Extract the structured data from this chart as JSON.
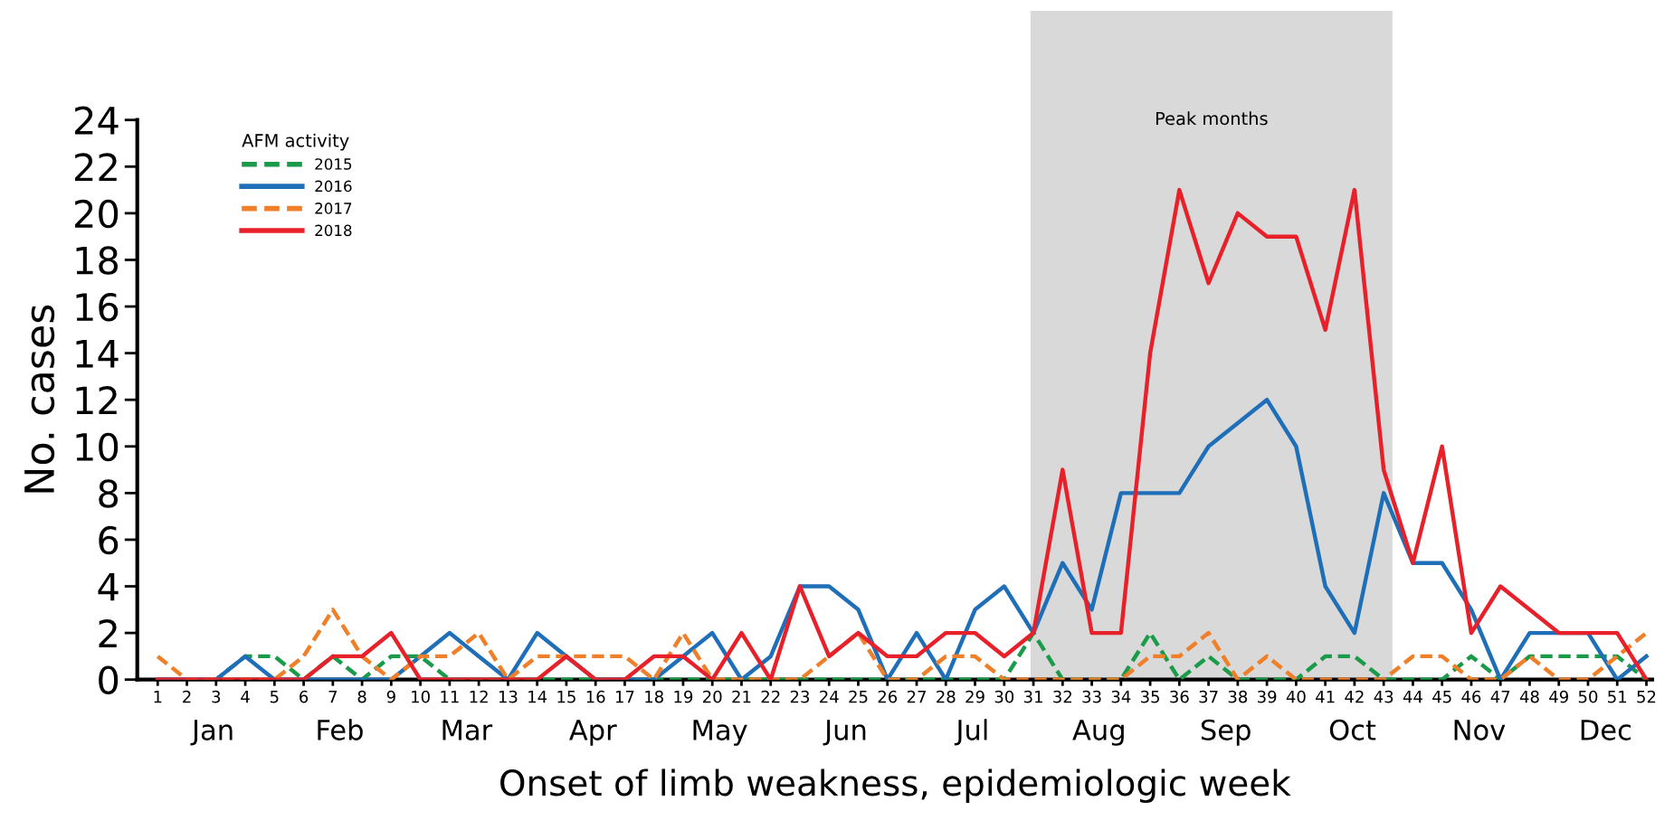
{
  "chart_data": {
    "type": "line",
    "xlabel": "Onset of limb weakness, epidemiologic week",
    "ylabel": "No. cases",
    "legend_title": "AFM activity",
    "x": [
      1,
      2,
      3,
      4,
      5,
      6,
      7,
      8,
      9,
      10,
      11,
      12,
      13,
      14,
      15,
      16,
      17,
      18,
      19,
      20,
      21,
      22,
      23,
      24,
      25,
      26,
      27,
      28,
      29,
      30,
      31,
      32,
      33,
      34,
      35,
      36,
      37,
      38,
      39,
      40,
      41,
      42,
      43,
      44,
      45,
      46,
      47,
      48,
      49,
      50,
      51,
      52
    ],
    "series": [
      {
        "name": "2015",
        "color": "#1a9b4a",
        "line_style": "dashed",
        "values": [
          0,
          0,
          0,
          1,
          1,
          0,
          1,
          0,
          1,
          1,
          0,
          0,
          0,
          0,
          0,
          0,
          0,
          0,
          0,
          0,
          0,
          0,
          0,
          0,
          0,
          0,
          0,
          0,
          0,
          0,
          2,
          0,
          0,
          0,
          2,
          0,
          1,
          0,
          0,
          0,
          1,
          1,
          0,
          0,
          0,
          1,
          0,
          1,
          1,
          1,
          1,
          0
        ]
      },
      {
        "name": "2016",
        "color": "#1f6fb8",
        "line_style": "solid",
        "values": [
          0,
          0,
          0,
          1,
          0,
          0,
          0,
          0,
          0,
          1,
          2,
          1,
          0,
          2,
          1,
          0,
          0,
          0,
          1,
          2,
          0,
          1,
          4,
          4,
          3,
          0,
          2,
          0,
          3,
          4,
          2,
          5,
          3,
          8,
          8,
          8,
          10,
          11,
          12,
          10,
          4,
          2,
          8,
          5,
          5,
          3,
          0,
          2,
          2,
          2,
          0,
          1
        ]
      },
      {
        "name": "2017",
        "color": "#f07f2a",
        "line_style": "dashed",
        "values": [
          1,
          0,
          0,
          0,
          0,
          1,
          3,
          1,
          0,
          1,
          1,
          2,
          0,
          1,
          1,
          1,
          1,
          0,
          2,
          0,
          0,
          0,
          0,
          1,
          2,
          0,
          0,
          1,
          1,
          0,
          0,
          0,
          0,
          0,
          1,
          1,
          2,
          0,
          1,
          0,
          0,
          0,
          0,
          1,
          1,
          0,
          0,
          1,
          0,
          0,
          1,
          2
        ]
      },
      {
        "name": "2018",
        "color": "#e8202a",
        "line_style": "solid",
        "values": [
          0,
          0,
          0,
          0,
          0,
          0,
          1,
          1,
          2,
          0,
          0,
          0,
          0,
          0,
          1,
          0,
          0,
          1,
          1,
          0,
          2,
          0,
          4,
          1,
          2,
          1,
          1,
          2,
          2,
          1,
          2,
          9,
          2,
          2,
          14,
          21,
          17,
          20,
          19,
          19,
          15,
          21,
          9,
          5,
          10,
          2,
          4,
          3,
          2,
          2,
          2,
          0
        ]
      }
    ],
    "xlim": [
      0.3,
      52.2
    ],
    "xticks": [
      1,
      2,
      3,
      4,
      5,
      6,
      7,
      8,
      9,
      10,
      11,
      12,
      13,
      14,
      15,
      16,
      17,
      18,
      19,
      20,
      21,
      22,
      23,
      24,
      25,
      26,
      27,
      28,
      29,
      30,
      31,
      32,
      33,
      34,
      35,
      36,
      37,
      38,
      39,
      40,
      41,
      42,
      43,
      44,
      45,
      46,
      47,
      48,
      49,
      50,
      51,
      52
    ],
    "ylim": [
      0,
      24
    ],
    "yticks": [
      0,
      2,
      4,
      6,
      8,
      10,
      12,
      14,
      16,
      18,
      20,
      22,
      24
    ],
    "bands": [
      {
        "axis": "x",
        "from": 30.9,
        "to": 43.3,
        "label": "Peak months",
        "color": "#d9d9d9"
      }
    ],
    "annotations": [
      "Jan",
      "Feb",
      "Mar",
      "Apr",
      "May",
      "Jun",
      "Jul",
      "Aug",
      "Sep",
      "Oct",
      "Nov",
      "Dec"
    ],
    "legend": "top left",
    "grid": false,
    "marker": "none"
  }
}
